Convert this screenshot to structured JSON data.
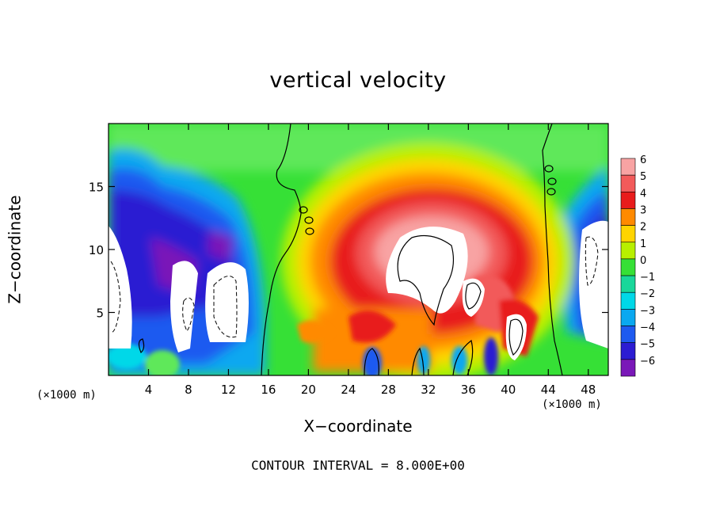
{
  "chart_data": {
    "type": "heatmap",
    "title": "vertical velocity",
    "xlabel": "X−coordinate",
    "ylabel": "Z−coordinate",
    "x_unit_label": "(×1000 m)",
    "x_unit_label_right": "(×1000 m)",
    "footer": "CONTOUR INTERVAL = 8.000E+00",
    "xlim": [
      0,
      50
    ],
    "ylim": [
      0,
      20
    ],
    "x_ticks": [
      4,
      8,
      12,
      16,
      20,
      24,
      28,
      32,
      36,
      40,
      44,
      48
    ],
    "y_ticks": [
      5,
      10,
      15
    ],
    "colorbar": {
      "levels": [
        6,
        5,
        4,
        3,
        2,
        1,
        0,
        -1,
        -2,
        -3,
        -4,
        -5,
        -6
      ],
      "level_labels": [
        "6",
        "5",
        "4",
        "3",
        "2",
        "1",
        "0",
        "−1",
        "−2",
        "−3",
        "−4",
        "−5",
        "−6"
      ],
      "colors": [
        "#f8a3a3",
        "#f25a5a",
        "#e81c1c",
        "#ff8a00",
        "#ffd400",
        "#b8f000",
        "#36e036",
        "#19d79a",
        "#00d8e8",
        "#0aa8f0",
        "#1e5af0",
        "#2c1cd2",
        "#7a18b8"
      ]
    },
    "features": [
      {
        "kind": "updraft",
        "x": 32,
        "z": 8,
        "value": 6
      },
      {
        "kind": "downdraft",
        "x": 9,
        "z": 10,
        "value": -6
      },
      {
        "kind": "downdraft",
        "x": 49,
        "z": 10,
        "value": -6
      }
    ]
  }
}
